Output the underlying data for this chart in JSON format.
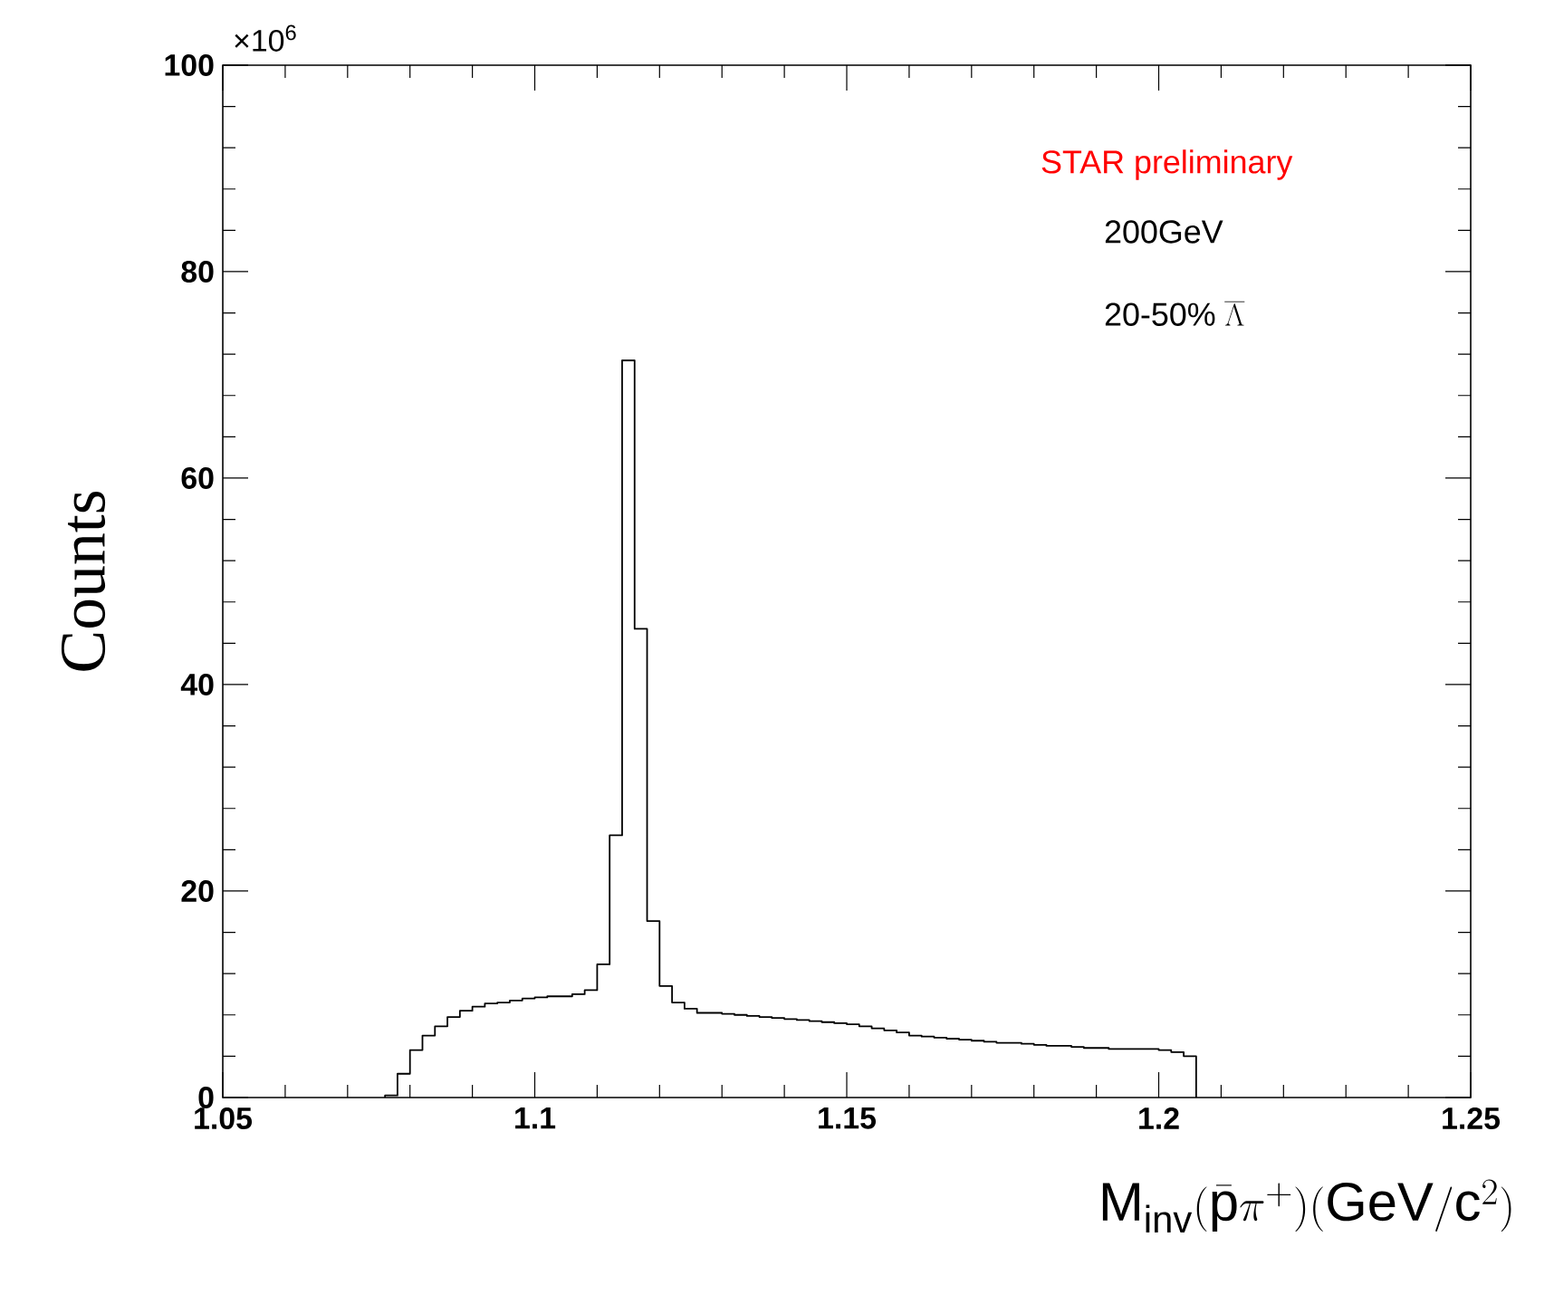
{
  "chart_data": {
    "type": "histogram",
    "xlabel": "\\mathrm{M}_{\\mathrm{inv}}(\\bar{\\mathrm{p}}\\pi^{+})(\\mathrm{GeV}/\\mathrm{c}^{2})",
    "ylabel": "Counts",
    "annotations": [
      "×10$^{6}$",
      "STAR preliminary",
      "200GeV",
      "\\mbox{20-50\\%}\\;\\overline{\\Lambda}"
    ],
    "color": "#000000",
    "bins": [
      1.076,
      1.078,
      1.08,
      1.082,
      1.084,
      1.086,
      1.088,
      1.09,
      1.092,
      1.094,
      1.096,
      1.098,
      1.1,
      1.102,
      1.104,
      1.106,
      1.108,
      1.11,
      1.112,
      1.114,
      1.116,
      1.118,
      1.12,
      1.122,
      1.124,
      1.126,
      1.128,
      1.13,
      1.132,
      1.134,
      1.136,
      1.138,
      1.14,
      1.142,
      1.144,
      1.146,
      1.148,
      1.15,
      1.152,
      1.154,
      1.156,
      1.158,
      1.16,
      1.162,
      1.164,
      1.166,
      1.168,
      1.17,
      1.172,
      1.174,
      1.176,
      1.178,
      1.18,
      1.182,
      1.184,
      1.186,
      1.188,
      1.19,
      1.192,
      1.194,
      1.196,
      1.198,
      1.2,
      1.202,
      1.204,
      1.206
    ],
    "values": [
      0.2,
      2.3,
      4.6,
      6.0,
      6.9,
      7.8,
      8.4,
      8.8,
      9.1,
      9.2,
      9.4,
      9.6,
      9.7,
      9.8,
      9.8,
      10.0,
      10.4,
      12.9,
      25.4,
      71.4,
      45.4,
      17.1,
      10.8,
      9.2,
      8.6,
      8.2,
      8.2,
      8.1,
      8.0,
      7.9,
      7.8,
      7.7,
      7.6,
      7.5,
      7.4,
      7.3,
      7.2,
      7.1,
      6.9,
      6.7,
      6.5,
      6.3,
      6.0,
      5.9,
      5.8,
      5.7,
      5.6,
      5.5,
      5.4,
      5.3,
      5.3,
      5.2,
      5.1,
      5.0,
      5.0,
      4.9,
      4.8,
      4.8,
      4.7,
      4.7,
      4.7,
      4.7,
      4.6,
      4.4,
      4.0
    ],
    "xlim": [
      1.05,
      1.25
    ],
    "ylim": [
      0,
      100
    ],
    "xticks": [
      1.05,
      1.1,
      1.15,
      1.2,
      1.25
    ],
    "yticks": [
      0,
      20,
      40,
      60,
      80,
      100
    ]
  }
}
